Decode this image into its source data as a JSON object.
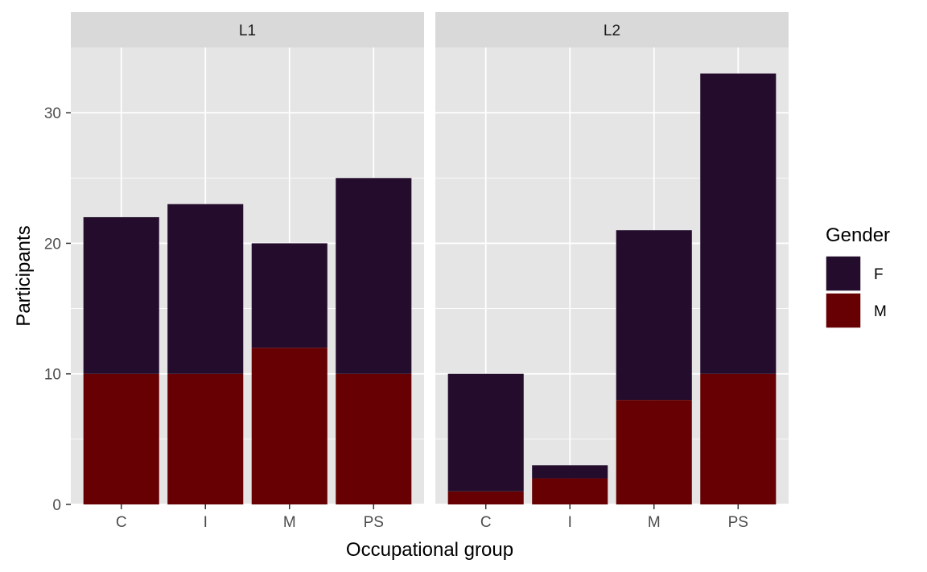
{
  "chart_data": {
    "type": "bar",
    "stacked": true,
    "facets": [
      "L1",
      "L2"
    ],
    "categories": [
      "C",
      "I",
      "M",
      "PS"
    ],
    "xlabel": "Occupational group",
    "ylabel": "Participants",
    "ylim": [
      0,
      35
    ],
    "yticks": [
      0,
      10,
      20,
      30
    ],
    "grid": true,
    "legend": {
      "title": "Gender",
      "position": "right",
      "entries": [
        "F",
        "M"
      ]
    },
    "colors": {
      "F": "#230c2c",
      "M": "#660003",
      "panel_background": "#e5e5e5",
      "strip_background": "#d9d9d9",
      "grid": "#ffffff"
    },
    "series": [
      {
        "name": "F",
        "facet_values": {
          "L1": [
            12,
            13,
            8,
            15
          ],
          "L2": [
            9,
            1,
            13,
            23
          ]
        }
      },
      {
        "name": "M",
        "facet_values": {
          "L1": [
            10,
            10,
            12,
            10
          ],
          "L2": [
            1,
            2,
            8,
            10
          ]
        }
      }
    ]
  }
}
